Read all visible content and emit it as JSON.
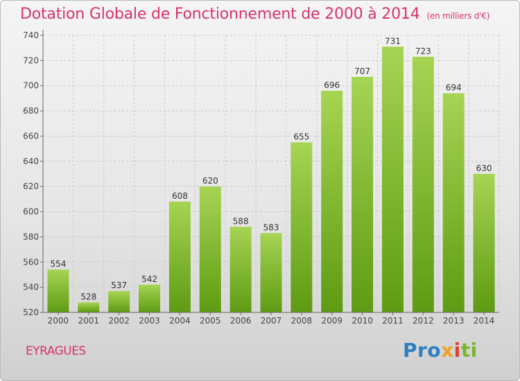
{
  "header": {
    "title": "Dotation Globale de Fonctionnement de 2000 à 2014",
    "unit": "(en milliers d'€)"
  },
  "footer": {
    "commune": "EYRAGUES",
    "logo": [
      "Pro",
      "x",
      "i",
      "ti"
    ]
  },
  "colors": {
    "bar_top": "#a6d453",
    "bar_bottom": "#5e9b12",
    "title": "#d8336a"
  },
  "chart_data": {
    "type": "bar",
    "title": "Dotation Globale de Fonctionnement de 2000 à 2014",
    "subtitle": "(en milliers d'€)",
    "categories": [
      "2000",
      "2001",
      "2002",
      "2003",
      "2004",
      "2005",
      "2006",
      "2007",
      "2008",
      "2009",
      "2010",
      "2011",
      "2012",
      "2013",
      "2014"
    ],
    "values": [
      554,
      528,
      537,
      542,
      608,
      620,
      588,
      583,
      655,
      696,
      707,
      731,
      723,
      694,
      630
    ],
    "ylim": [
      520,
      740
    ],
    "yticks": [
      520,
      540,
      560,
      580,
      600,
      620,
      640,
      660,
      680,
      700,
      720,
      740
    ],
    "grid": true
  }
}
